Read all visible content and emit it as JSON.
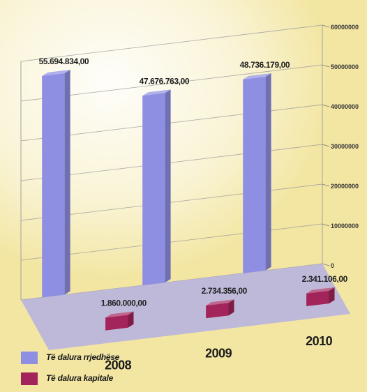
{
  "chart_data": {
    "type": "bar",
    "title": "",
    "xlabel": "",
    "ylabel": "",
    "categories": [
      "2008",
      "2009",
      "2010"
    ],
    "ylim": [
      0,
      60000000
    ],
    "yticks": [
      {
        "value": 0,
        "label": "0"
      },
      {
        "value": 10000000,
        "label": "10000000"
      },
      {
        "value": 20000000,
        "label": "20000000"
      },
      {
        "value": 30000000,
        "label": "30000000"
      },
      {
        "value": 40000000,
        "label": "40000000"
      },
      {
        "value": 50000000,
        "label": "50000000"
      },
      {
        "value": 60000000,
        "label": "60000000"
      }
    ],
    "grid": true,
    "legend_position": "bottom-left",
    "series": [
      {
        "name": "Të dalura rrjedhëse",
        "color": "#8e8ee3",
        "values": [
          55694834,
          47676763,
          48736179
        ],
        "value_labels": [
          "55.694.834,00",
          "47.676.763,00",
          "48.736.179,00"
        ]
      },
      {
        "name": "Të dalura kapitale",
        "color": "#a3245a",
        "values": [
          1860000,
          2734356,
          2341106
        ],
        "value_labels": [
          "1.860.000,00",
          "2.734.356,00",
          "2.341.106,00"
        ]
      }
    ]
  }
}
